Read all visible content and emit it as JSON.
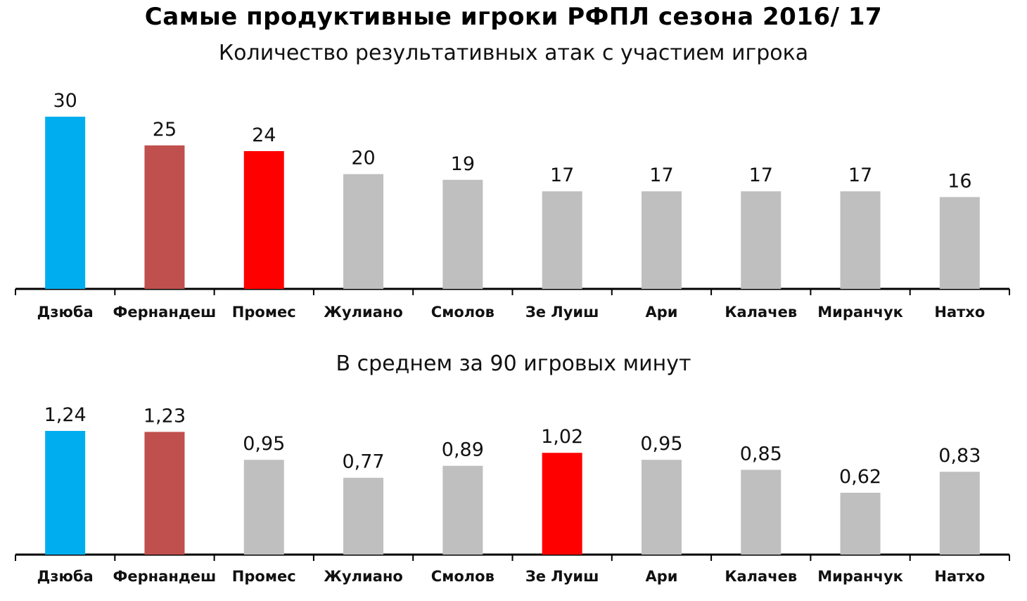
{
  "title": "Самые продуктивные игроки РФПЛ сезона 2016/ 17",
  "chart_data": [
    {
      "type": "bar",
      "subtitle": "Количество результативных атак с участием игрока",
      "categories": [
        "Дзюба",
        "Фернандеш",
        "Промес",
        "Жулиано",
        "Смолов",
        "Зе Луиш",
        "Ари",
        "Калачев",
        "Миранчук",
        "Натхо"
      ],
      "values": [
        30,
        25,
        24,
        20,
        19,
        17,
        17,
        17,
        17,
        16
      ],
      "value_labels": [
        "30",
        "25",
        "24",
        "20",
        "19",
        "17",
        "17",
        "17",
        "17",
        "16"
      ],
      "colors": [
        "#00aeef",
        "#c0504d",
        "#ff0000",
        "#bfbfbf",
        "#bfbfbf",
        "#bfbfbf",
        "#bfbfbf",
        "#bfbfbf",
        "#bfbfbf",
        "#bfbfbf"
      ],
      "ylim": [
        0,
        30
      ],
      "grid": false,
      "legend": "none"
    },
    {
      "type": "bar",
      "subtitle": "В среднем за 90 игровых минут",
      "categories": [
        "Дзюба",
        "Фернандеш",
        "Промес",
        "Жулиано",
        "Смолов",
        "Зе Луиш",
        "Ари",
        "Калачев",
        "Миранчук",
        "Натхо"
      ],
      "values": [
        1.24,
        1.23,
        0.95,
        0.77,
        0.89,
        1.02,
        0.95,
        0.85,
        0.62,
        0.83
      ],
      "value_labels": [
        "1,24",
        "1,23",
        "0,95",
        "0,77",
        "0,89",
        "1,02",
        "0,95",
        "0,85",
        "0,62",
        "0,83"
      ],
      "colors": [
        "#00aeef",
        "#c0504d",
        "#bfbfbf",
        "#bfbfbf",
        "#bfbfbf",
        "#ff0000",
        "#bfbfbf",
        "#bfbfbf",
        "#bfbfbf",
        "#bfbfbf"
      ],
      "ylim": [
        0,
        1.24
      ],
      "grid": false,
      "legend": "none"
    }
  ]
}
